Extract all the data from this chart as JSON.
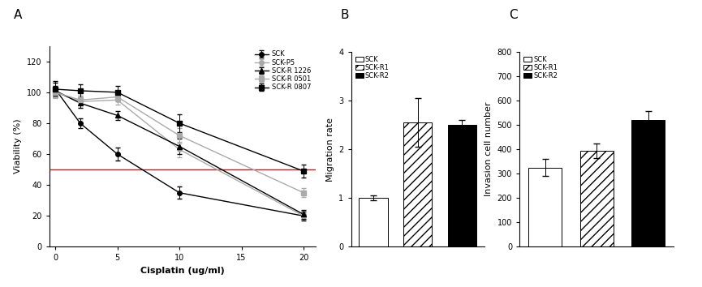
{
  "panel_A": {
    "xlabel": "Cisplatin (ug/ml)",
    "ylabel": "Viability (%)",
    "xlim": [
      -0.5,
      21
    ],
    "ylim": [
      0,
      130
    ],
    "yticks": [
      0,
      20,
      40,
      60,
      80,
      100,
      120
    ],
    "xticks": [
      0,
      5,
      10,
      15,
      20
    ],
    "hline_y": 50,
    "hline_color": "#ff0000",
    "series": [
      {
        "label": "SCK",
        "x": [
          0,
          2,
          5,
          10,
          20
        ],
        "y": [
          102,
          80,
          60,
          35,
          20
        ],
        "yerr": [
          5,
          3,
          4,
          4,
          3
        ],
        "color": "#000000",
        "marker": "o",
        "linestyle": "-",
        "linewidth": 1.0,
        "markersize": 4
      },
      {
        "label": "SCK-P5",
        "x": [
          0,
          2,
          5,
          10,
          20
        ],
        "y": [
          100,
          94,
          95,
          63,
          20
        ],
        "yerr": [
          4,
          4,
          3,
          5,
          2
        ],
        "color": "#aaaaaa",
        "marker": "o",
        "linestyle": "-",
        "linewidth": 1.0,
        "markersize": 4
      },
      {
        "label": "SCK-R 1226",
        "x": [
          0,
          2,
          5,
          10,
          20
        ],
        "y": [
          101,
          93,
          85,
          65,
          21
        ],
        "yerr": [
          3,
          3,
          3,
          5,
          3
        ],
        "color": "#000000",
        "marker": "^",
        "linestyle": "-",
        "linewidth": 1.0,
        "markersize": 4
      },
      {
        "label": "SCK-R 0501",
        "x": [
          0,
          2,
          5,
          10,
          20
        ],
        "y": [
          100,
          95,
          97,
          72,
          35
        ],
        "yerr": [
          3,
          3,
          3,
          5,
          3
        ],
        "color": "#aaaaaa",
        "marker": "s",
        "linestyle": "-",
        "linewidth": 1.0,
        "markersize": 4
      },
      {
        "label": "SCK-R 0807",
        "x": [
          0,
          2,
          5,
          10,
          20
        ],
        "y": [
          102,
          101,
          100,
          80,
          49
        ],
        "yerr": [
          4,
          4,
          4,
          6,
          4
        ],
        "color": "#000000",
        "marker": "s",
        "linestyle": "-",
        "linewidth": 1.0,
        "markersize": 4
      }
    ]
  },
  "panel_B": {
    "ylabel": "Migration rate",
    "ylim": [
      0,
      4
    ],
    "yticks": [
      0,
      1,
      2,
      3,
      4
    ],
    "categories": [
      "SCK",
      "SCK-R1",
      "SCK-R2"
    ],
    "values": [
      1.0,
      2.55,
      2.5
    ],
    "errors": [
      0.05,
      0.5,
      0.1
    ],
    "colors": [
      "white",
      "white",
      "black"
    ],
    "hatches": [
      "",
      "///",
      ""
    ],
    "edgecolors": [
      "black",
      "black",
      "black"
    ]
  },
  "panel_C": {
    "ylabel": "Invasion cell number",
    "ylim": [
      0,
      800
    ],
    "yticks": [
      0,
      100,
      200,
      300,
      400,
      500,
      600,
      700,
      800
    ],
    "categories": [
      "SCK",
      "SCK-R1",
      "SCK-R2"
    ],
    "values": [
      325,
      395,
      520
    ],
    "errors": [
      35,
      30,
      35
    ],
    "colors": [
      "white",
      "white",
      "black"
    ],
    "hatches": [
      "",
      "///",
      ""
    ],
    "edgecolors": [
      "black",
      "black",
      "black"
    ]
  },
  "label_A": "A",
  "label_B": "B",
  "label_C": "C",
  "bg_color": "#ffffff"
}
